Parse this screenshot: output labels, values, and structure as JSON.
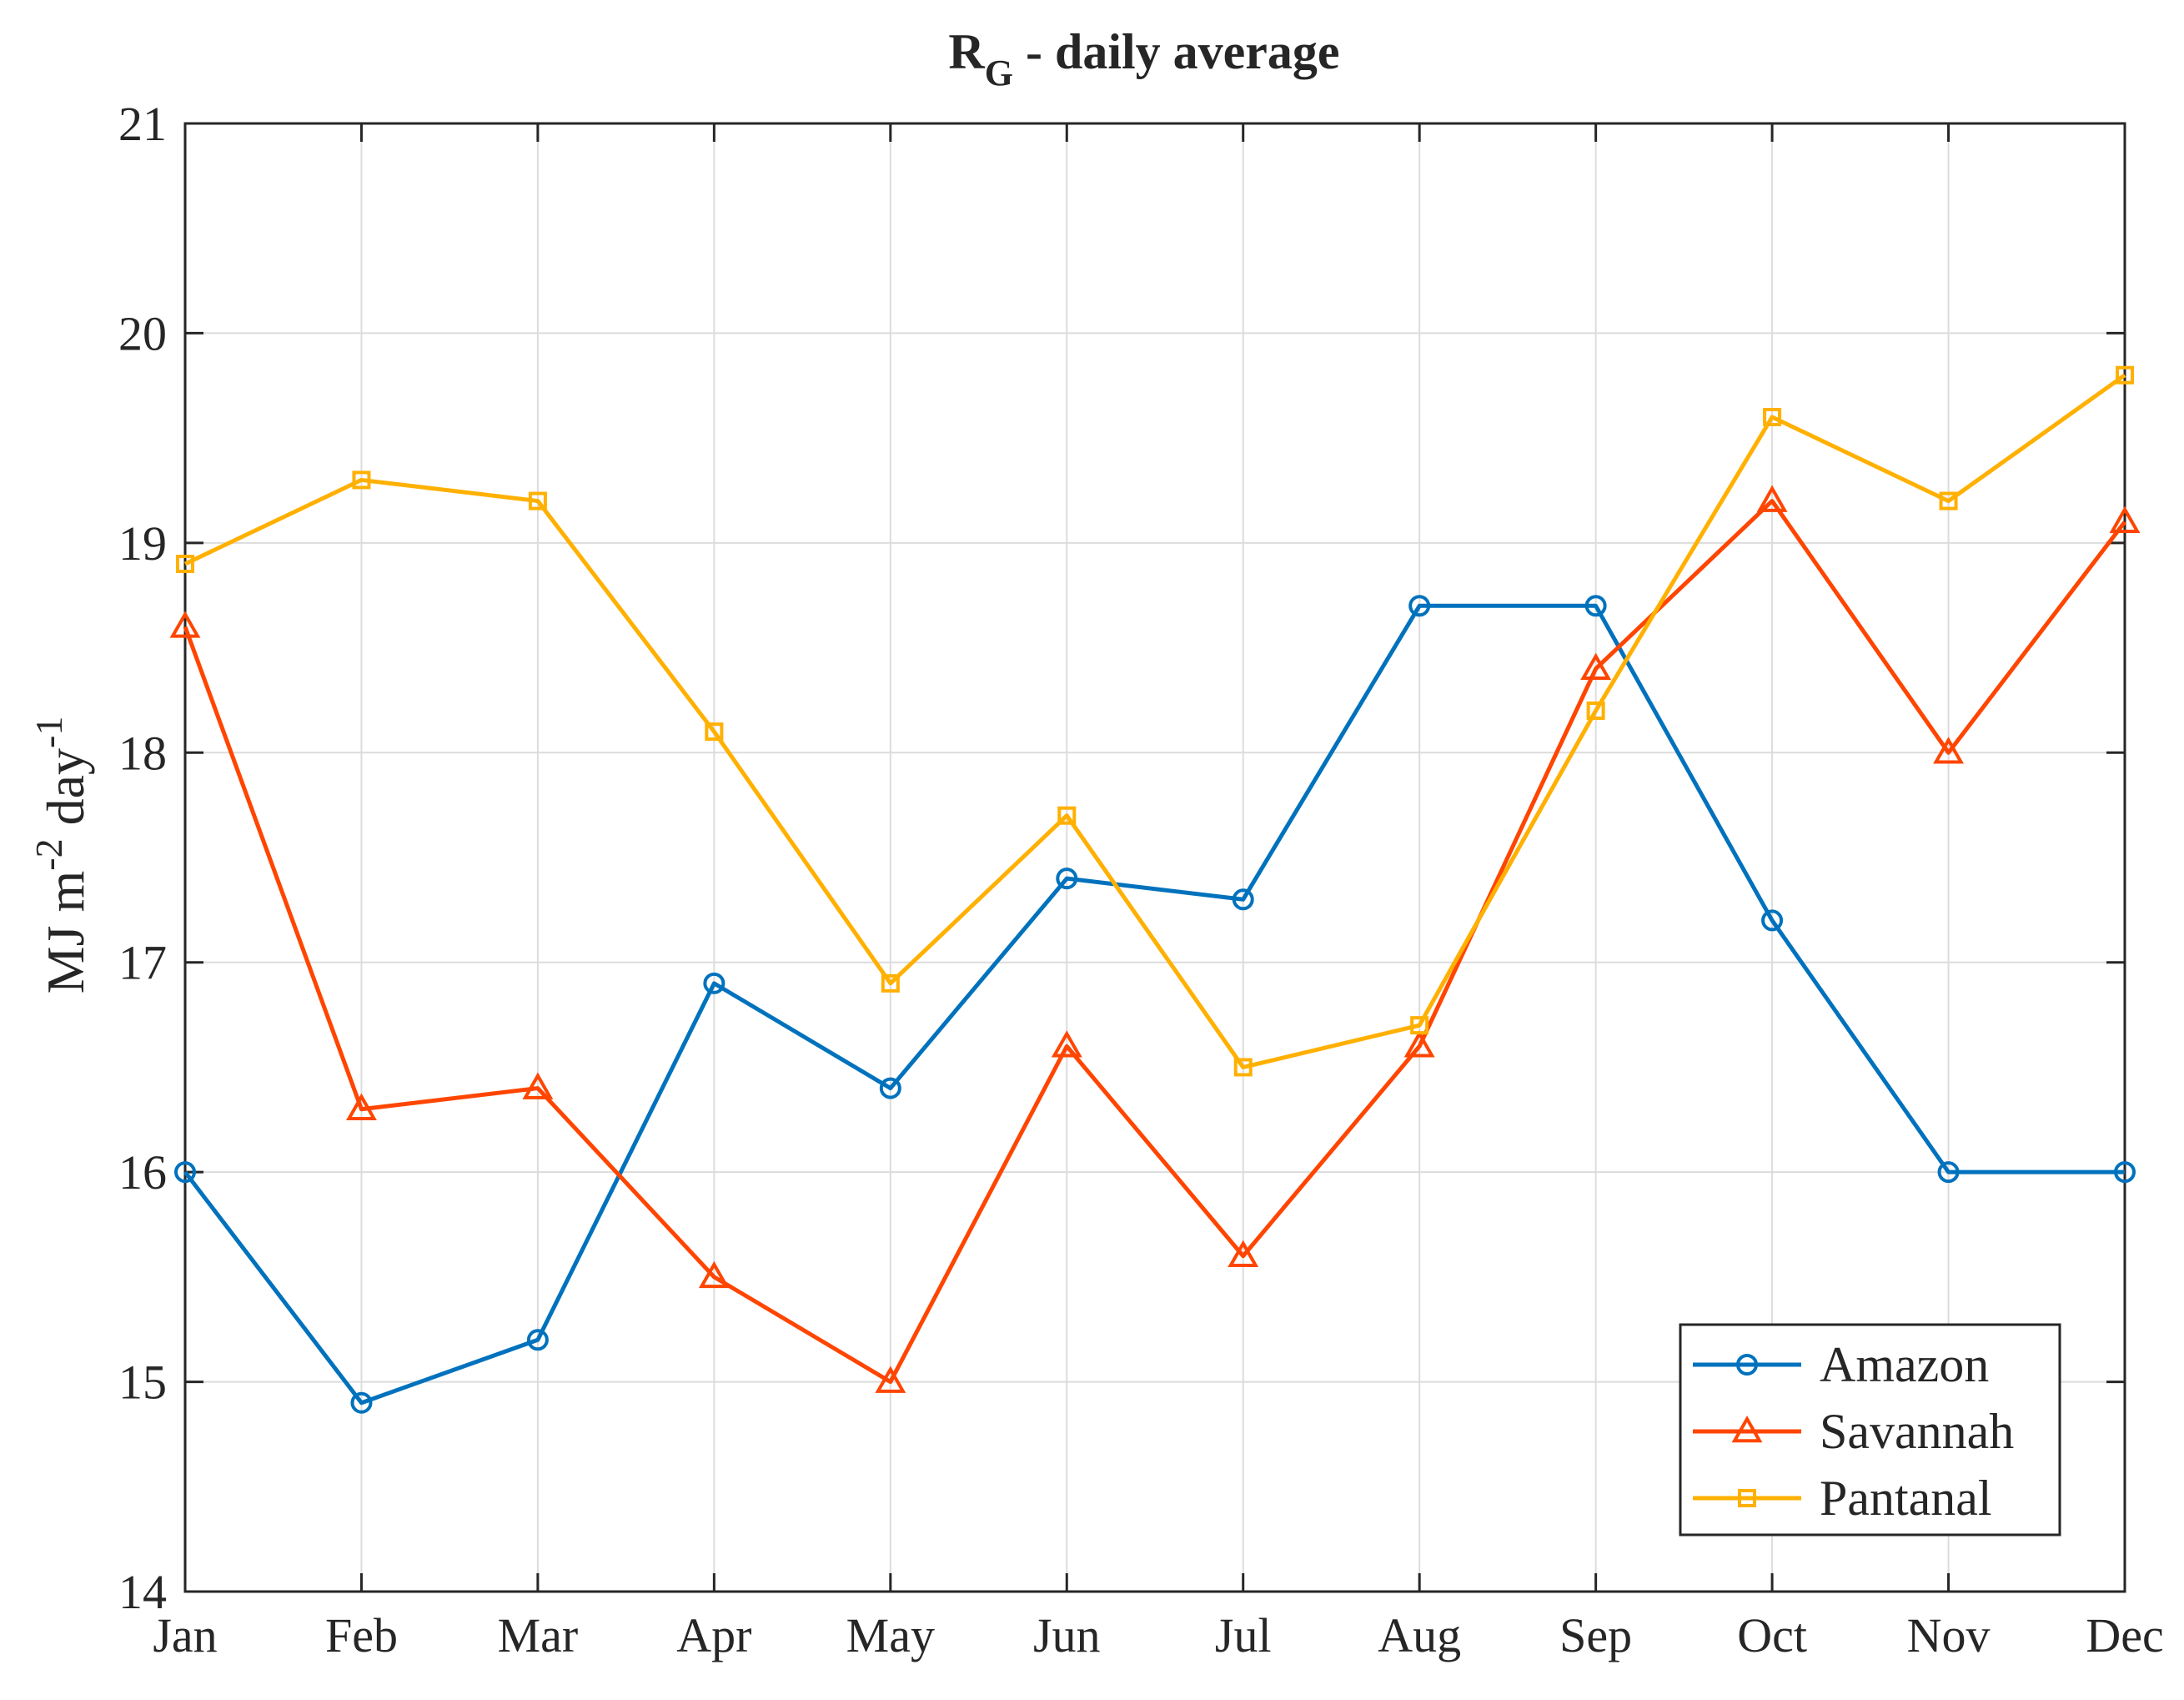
{
  "chart_data": {
    "type": "line",
    "title": {
      "main": "R",
      "subscript": "G",
      "rest": " - daily average"
    },
    "xlabel": "",
    "ylabel": {
      "part1": "MJ m",
      "sup1": "-2",
      "part2": " day",
      "sup2": "-1"
    },
    "categories": [
      "Jan",
      "Feb",
      "Mar",
      "Apr",
      "May",
      "Jun",
      "Jul",
      "Aug",
      "Sep",
      "Oct",
      "Nov",
      "Dec"
    ],
    "ylim": [
      14,
      21
    ],
    "yticks": [
      "14",
      "15",
      "16",
      "17",
      "18",
      "19",
      "20",
      "21"
    ],
    "grid": true,
    "legend_position": "bottom-right",
    "series": [
      {
        "name": "Amazon",
        "color": "#0072BD",
        "marker": "circle",
        "values": [
          16.0,
          14.9,
          15.2,
          16.9,
          16.4,
          17.4,
          17.3,
          18.7,
          18.7,
          17.2,
          16.0,
          16.0
        ]
      },
      {
        "name": "Savannah",
        "color": "#FF4500",
        "marker": "triangle",
        "values": [
          18.6,
          16.3,
          16.4,
          15.5,
          15.0,
          16.6,
          15.6,
          16.6,
          18.4,
          19.2,
          18.0,
          19.1
        ]
      },
      {
        "name": "Pantanal",
        "color": "#FFB000",
        "marker": "square",
        "values": [
          18.9,
          19.3,
          19.2,
          18.1,
          16.9,
          17.7,
          16.5,
          16.7,
          18.2,
          19.6,
          19.2,
          19.8
        ]
      }
    ]
  }
}
